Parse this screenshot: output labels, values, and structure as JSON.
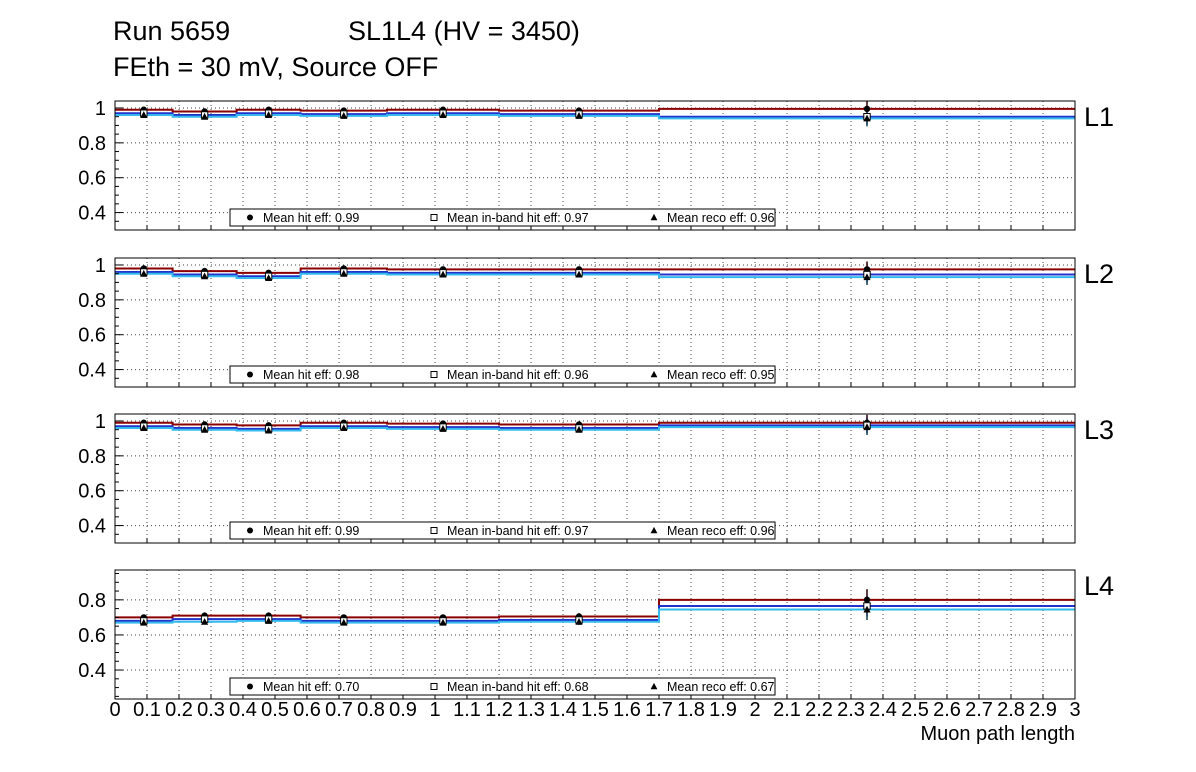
{
  "header": {
    "run": "Run 5659",
    "chamber": "SL1L4 (HV = 3450)",
    "subtitle": "FEth = 30 mV, Source OFF"
  },
  "x_axis": {
    "label": "Muon path length",
    "min": 0,
    "max": 3,
    "tick_step": 0.1,
    "tick_labels": [
      "0",
      "0.1",
      "0.2",
      "0.3",
      "0.4",
      "0.5",
      "0.6",
      "0.7",
      "0.8",
      "0.9",
      "1",
      "1.1",
      "1.2",
      "1.3",
      "1.4",
      "1.5",
      "1.6",
      "1.7",
      "1.8",
      "1.9",
      "2",
      "2.1",
      "2.2",
      "2.3",
      "2.4",
      "2.5",
      "2.6",
      "2.7",
      "2.8",
      "2.9",
      "3"
    ]
  },
  "colors": {
    "hit": "#8b0000",
    "inband": "#2233cc",
    "reco": "#33bbee",
    "grid": "#444444",
    "marker": "#000000"
  },
  "chart_data": [
    {
      "type": "line",
      "panel_label": "L1",
      "ylim": [
        0.3,
        1.04
      ],
      "ytick_values": [
        1,
        0.8,
        0.6,
        0.4
      ],
      "ytick_labels": [
        "1",
        "0.8",
        "0.6",
        "0.4"
      ],
      "bin_edges": [
        0,
        0.18,
        0.38,
        0.58,
        0.85,
        1.2,
        1.7,
        3.0
      ],
      "errors": [
        0.012,
        0.012,
        0.012,
        0.012,
        0.012,
        0.015,
        0.045
      ],
      "series": [
        {
          "name": "hit-eff",
          "color": "#8b0000",
          "marker": "filled-circle",
          "values": [
            0.99,
            0.98,
            0.99,
            0.985,
            0.99,
            0.985,
            0.995
          ]
        },
        {
          "name": "in-band-hit-eff",
          "color": "#2233cc",
          "marker": "open-square",
          "values": [
            0.97,
            0.96,
            0.97,
            0.965,
            0.97,
            0.965,
            0.95
          ]
        },
        {
          "name": "reco-eff",
          "color": "#33bbee",
          "marker": "filled-triangle",
          "values": [
            0.96,
            0.95,
            0.96,
            0.955,
            0.96,
            0.955,
            0.94
          ]
        }
      ],
      "legend": [
        {
          "marker": "filled-circle",
          "label": "Mean hit  eff: 0.99"
        },
        {
          "marker": "open-square",
          "label": "Mean in-band hit eff: 0.97"
        },
        {
          "marker": "filled-triangle",
          "label": "Mean reco eff: 0.96"
        }
      ]
    },
    {
      "type": "line",
      "panel_label": "L2",
      "ylim": [
        0.3,
        1.04
      ],
      "ytick_values": [
        1,
        0.8,
        0.6,
        0.4
      ],
      "ytick_labels": [
        "1",
        "0.8",
        "0.6",
        "0.4"
      ],
      "bin_edges": [
        0,
        0.18,
        0.38,
        0.58,
        0.85,
        1.2,
        1.7,
        3.0
      ],
      "errors": [
        0.012,
        0.012,
        0.012,
        0.012,
        0.012,
        0.015,
        0.045
      ],
      "series": [
        {
          "name": "hit-eff",
          "color": "#8b0000",
          "marker": "filled-circle",
          "values": [
            0.98,
            0.965,
            0.955,
            0.98,
            0.975,
            0.975,
            0.975
          ]
        },
        {
          "name": "in-band-hit-eff",
          "color": "#2233cc",
          "marker": "open-square",
          "values": [
            0.96,
            0.945,
            0.935,
            0.96,
            0.955,
            0.955,
            0.945
          ]
        },
        {
          "name": "reco-eff",
          "color": "#33bbee",
          "marker": "filled-triangle",
          "values": [
            0.95,
            0.935,
            0.925,
            0.95,
            0.945,
            0.945,
            0.93
          ]
        }
      ],
      "legend": [
        {
          "marker": "filled-circle",
          "label": "Mean hit  eff: 0.98"
        },
        {
          "marker": "open-square",
          "label": "Mean in-band hit eff: 0.96"
        },
        {
          "marker": "filled-triangle",
          "label": "Mean reco eff: 0.95"
        }
      ]
    },
    {
      "type": "line",
      "panel_label": "L3",
      "ylim": [
        0.3,
        1.04
      ],
      "ytick_values": [
        1,
        0.8,
        0.6,
        0.4
      ],
      "ytick_labels": [
        "1",
        "0.8",
        "0.6",
        "0.4"
      ],
      "bin_edges": [
        0,
        0.18,
        0.38,
        0.58,
        0.85,
        1.2,
        1.7,
        3.0
      ],
      "errors": [
        0.012,
        0.012,
        0.012,
        0.012,
        0.012,
        0.015,
        0.045
      ],
      "series": [
        {
          "name": "hit-eff",
          "color": "#8b0000",
          "marker": "filled-circle",
          "values": [
            0.99,
            0.98,
            0.975,
            0.99,
            0.985,
            0.98,
            0.99
          ]
        },
        {
          "name": "in-band-hit-eff",
          "color": "#2233cc",
          "marker": "open-square",
          "values": [
            0.97,
            0.96,
            0.955,
            0.97,
            0.965,
            0.96,
            0.975
          ]
        },
        {
          "name": "reco-eff",
          "color": "#33bbee",
          "marker": "filled-triangle",
          "values": [
            0.96,
            0.95,
            0.945,
            0.96,
            0.955,
            0.95,
            0.965
          ]
        }
      ],
      "legend": [
        {
          "marker": "filled-circle",
          "label": "Mean hit  eff: 0.99"
        },
        {
          "marker": "open-square",
          "label": "Mean in-band hit eff: 0.97"
        },
        {
          "marker": "filled-triangle",
          "label": "Mean reco eff: 0.96"
        }
      ]
    },
    {
      "type": "line",
      "panel_label": "L4",
      "ylim": [
        0.235,
        0.97
      ],
      "ytick_values": [
        0.8,
        0.6,
        0.4
      ],
      "ytick_labels": [
        "0.8",
        "0.6",
        "0.4"
      ],
      "bin_edges": [
        0,
        0.18,
        0.38,
        0.58,
        0.85,
        1.2,
        1.7,
        3.0
      ],
      "errors": [
        0.015,
        0.015,
        0.015,
        0.015,
        0.015,
        0.018,
        0.06
      ],
      "series": [
        {
          "name": "hit-eff",
          "color": "#8b0000",
          "marker": "filled-circle",
          "values": [
            0.7,
            0.71,
            0.71,
            0.7,
            0.7,
            0.705,
            0.8
          ]
        },
        {
          "name": "in-band-hit-eff",
          "color": "#2233cc",
          "marker": "open-square",
          "values": [
            0.68,
            0.69,
            0.69,
            0.68,
            0.68,
            0.685,
            0.765
          ]
        },
        {
          "name": "reco-eff",
          "color": "#33bbee",
          "marker": "filled-triangle",
          "values": [
            0.67,
            0.675,
            0.68,
            0.67,
            0.67,
            0.675,
            0.745
          ]
        }
      ],
      "legend": [
        {
          "marker": "filled-circle",
          "label": "Mean hit  eff: 0.70"
        },
        {
          "marker": "open-square",
          "label": "Mean in-band hit eff: 0.68"
        },
        {
          "marker": "filled-triangle",
          "label": "Mean reco eff: 0.67"
        }
      ]
    }
  ]
}
